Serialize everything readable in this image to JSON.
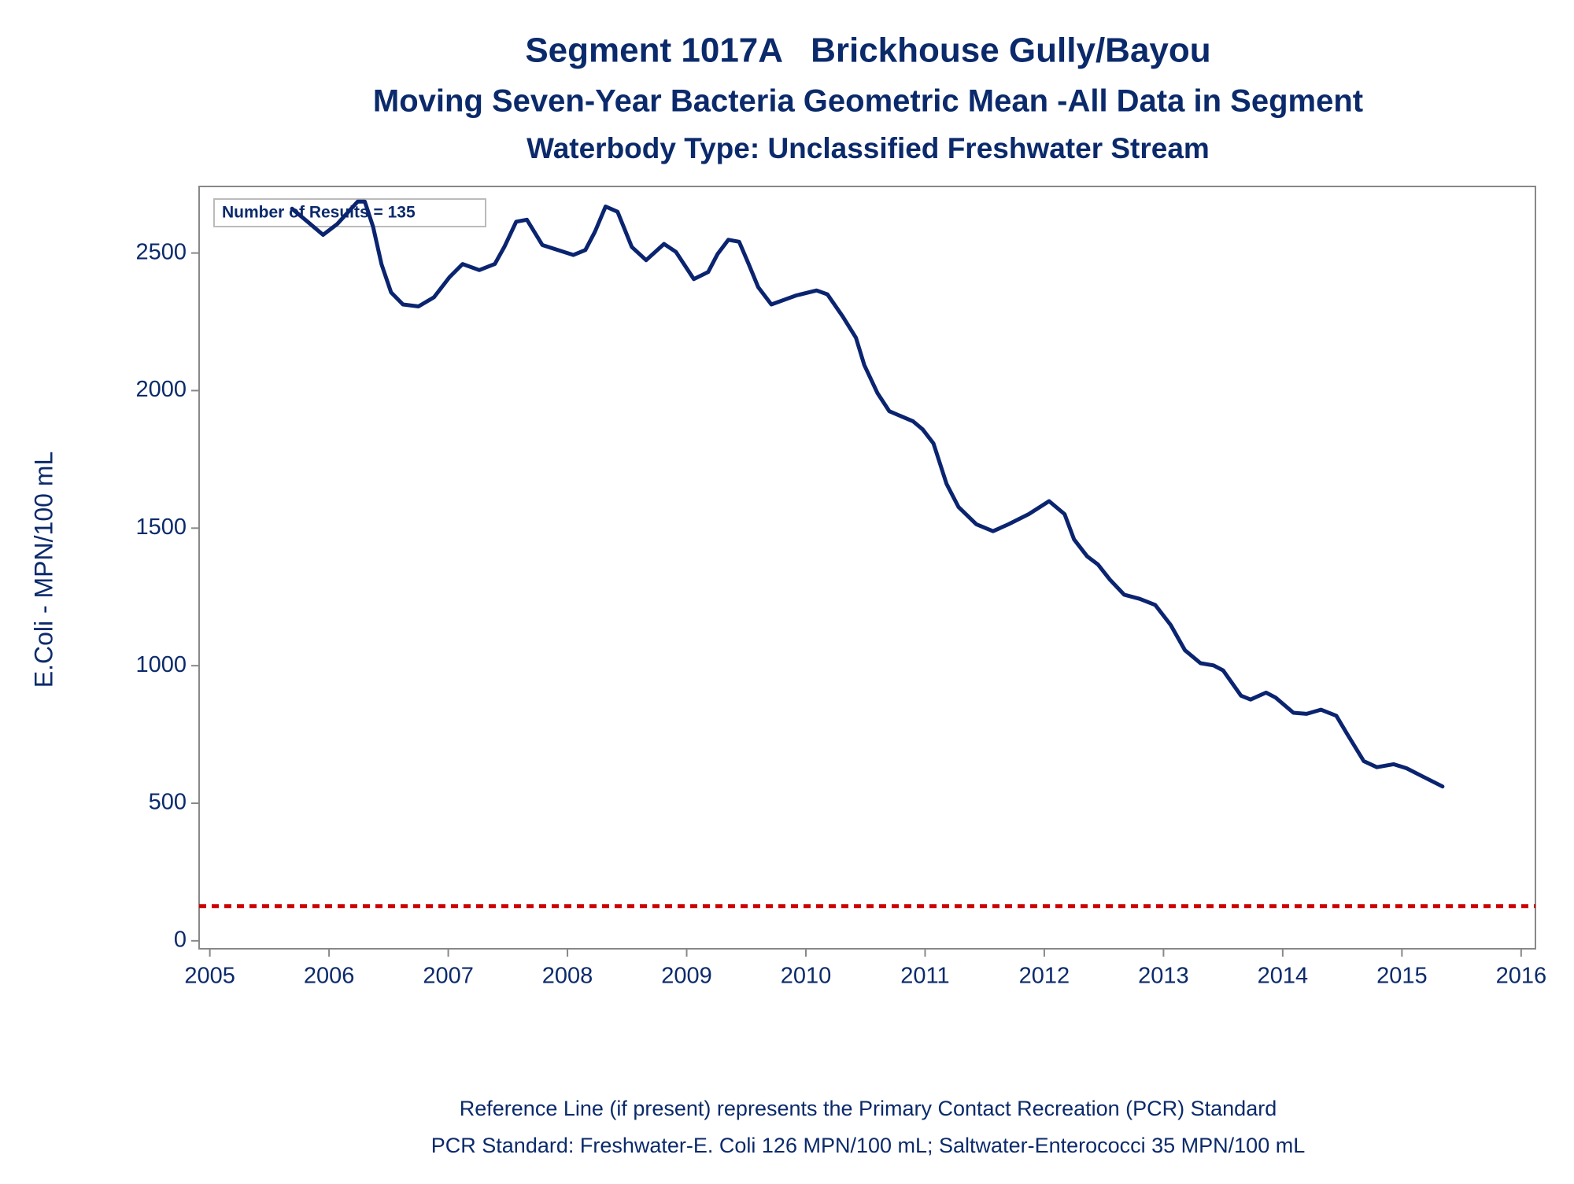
{
  "chart_data": {
    "type": "line",
    "title": "Segment 1017A   Brickhouse Gully/Bayou",
    "subtitle": "Moving Seven-Year Bacteria Geometric Mean -All Data in Segment",
    "subtitle2": "Waterbody Type: Unclassified Freshwater Stream",
    "y_label": "E.Coli - MPN/100 mL",
    "annotation": "Number of Results = 135",
    "footnotes": [
      "Reference Line (if present) represents the Primary Contact Recreation (PCR) Standard",
      "PCR Standard: Freshwater-E. Coli 126 MPN/100 mL; Saltwater-Enterococci 35 MPN/100 mL"
    ],
    "xlim": [
      2004.91,
      2016.12
    ],
    "xticks": [
      2005,
      2006,
      2007,
      2008,
      2009,
      2010,
      2011,
      2012,
      2013,
      2014,
      2015,
      2016
    ],
    "ylim": [
      -29,
      2742
    ],
    "yticks": [
      0,
      500,
      1000,
      1500,
      2000,
      2500
    ],
    "reference_line": {
      "value": 126,
      "color": "#cc0000"
    },
    "series": [
      {
        "color": "#0a2470",
        "x": [
          2005.69,
          2005.82,
          2005.95,
          2006.07,
          2006.24,
          2006.3,
          2006.37,
          2006.44,
          2006.52,
          2006.62,
          2006.75,
          2006.88,
          2007.01,
          2007.12,
          2007.26,
          2007.39,
          2007.47,
          2007.57,
          2007.66,
          2007.79,
          2008.05,
          2008.15,
          2008.23,
          2008.32,
          2008.42,
          2008.54,
          2008.66,
          2008.81,
          2008.91,
          2009.06,
          2009.18,
          2009.26,
          2009.35,
          2009.44,
          2009.52,
          2009.6,
          2009.71,
          2009.92,
          2010.09,
          2010.18,
          2010.31,
          2010.42,
          2010.49,
          2010.6,
          2010.7,
          2010.9,
          2010.98,
          2011.07,
          2011.18,
          2011.28,
          2011.43,
          2011.57,
          2011.7,
          2011.87,
          2012.04,
          2012.17,
          2012.25,
          2012.36,
          2012.45,
          2012.55,
          2012.67,
          2012.8,
          2012.93,
          2013.06,
          2013.18,
          2013.31,
          2013.42,
          2013.5,
          2013.65,
          2013.73,
          2013.86,
          2013.94,
          2014.09,
          2014.2,
          2014.32,
          2014.45,
          2014.54,
          2014.68,
          2014.79,
          2014.93,
          2015.04,
          2015.17,
          2015.34
        ],
        "values": [
          2661,
          2614,
          2566,
          2606,
          2687,
          2687,
          2595,
          2459,
          2357,
          2313,
          2306,
          2339,
          2412,
          2460,
          2438,
          2460,
          2522,
          2614,
          2621,
          2529,
          2493,
          2511,
          2577,
          2669,
          2650,
          2522,
          2474,
          2533,
          2504,
          2405,
          2431,
          2497,
          2548,
          2541,
          2460,
          2376,
          2313,
          2346,
          2364,
          2350,
          2269,
          2192,
          2093,
          1991,
          1925,
          1888,
          1859,
          1808,
          1661,
          1577,
          1514,
          1489,
          1514,
          1551,
          1598,
          1551,
          1459,
          1397,
          1368,
          1313,
          1258,
          1243,
          1221,
          1148,
          1056,
          1009,
          1001,
          983,
          891,
          877,
          902,
          884,
          829,
          825,
          840,
          818,
          752,
          653,
          631,
          642,
          627,
          598,
          561
        ]
      }
    ]
  }
}
